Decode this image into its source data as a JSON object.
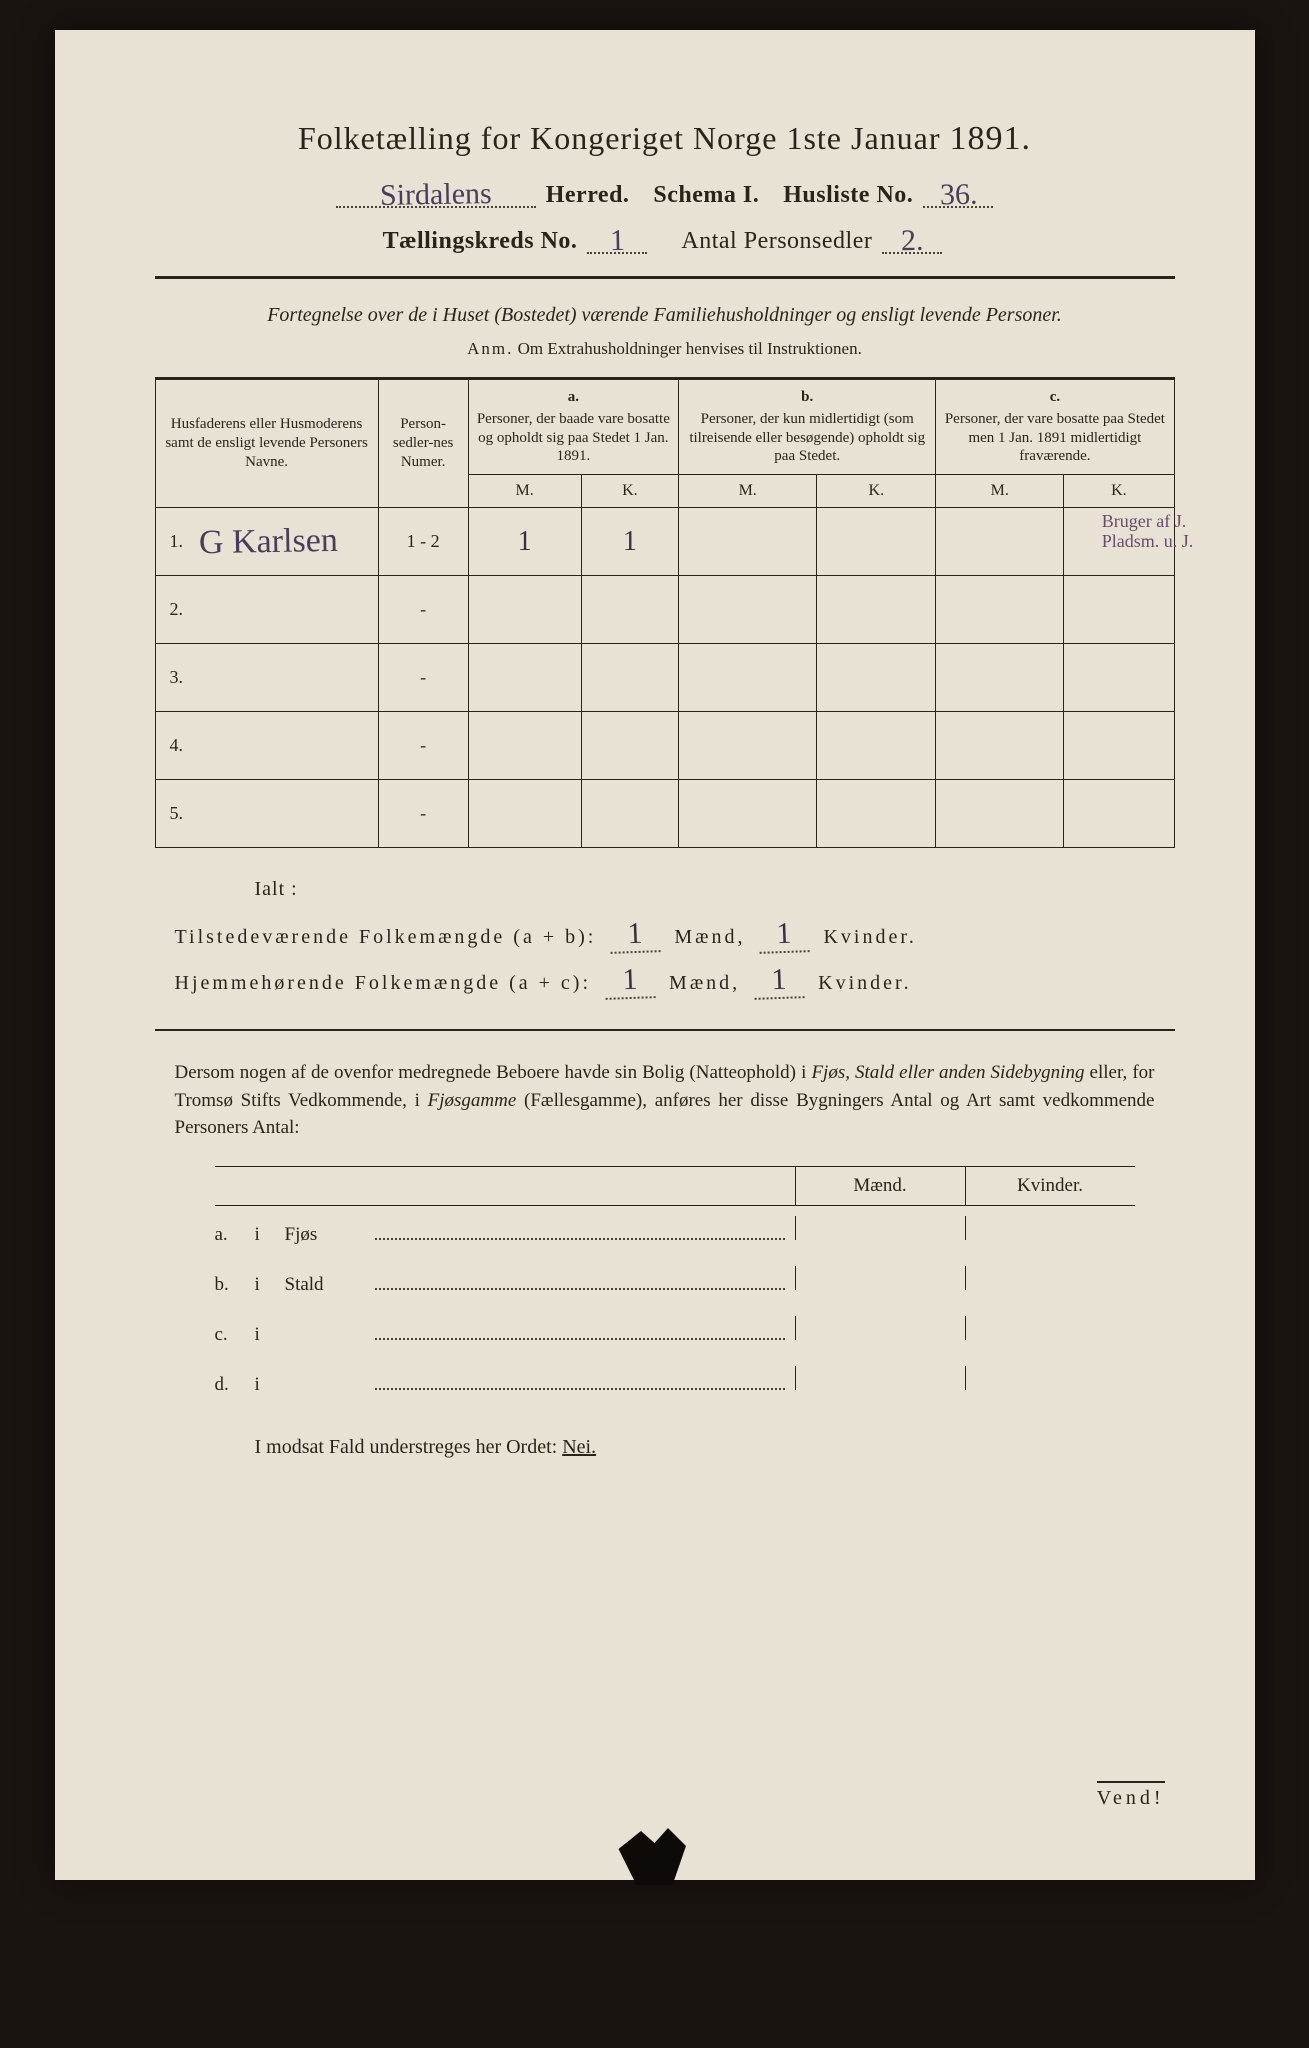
{
  "page": {
    "bg": "#e8e2d4",
    "ink": "#2a2418",
    "handwriting_color": "#4a3c5a"
  },
  "title": {
    "text_a": "Folketælling for Kongeriget Norge 1ste Januar",
    "year": "1891."
  },
  "header": {
    "herred_hw": "Sirdalens",
    "herred_label": "Herred.",
    "schema_label": "Schema I.",
    "husliste_label": "Husliste No.",
    "husliste_hw": "36.",
    "kreds_label": "Tællingskreds No.",
    "kreds_hw": "1",
    "antal_label": "Antal Personsedler",
    "antal_hw": "2."
  },
  "subtitle": "Fortegnelse over de i Huset (Bostedet) værende Familiehusholdninger og ensligt levende Personer.",
  "anm": {
    "lead": "Anm.",
    "text": "Om Extrahusholdninger henvises til Instruktionen."
  },
  "table": {
    "col_name": "Husfaderens eller Husmoderens samt de ensligt levende Personers Navne.",
    "col_num": "Person-sedler-nes Numer.",
    "col_a_tag": "a.",
    "col_a": "Personer, der baade vare bosatte og opholdt sig paa Stedet 1 Jan. 1891.",
    "col_b_tag": "b.",
    "col_b": "Personer, der kun midlertidigt (som tilreisende eller besøgende) opholdt sig paa Stedet.",
    "col_c_tag": "c.",
    "col_c": "Personer, der vare bosatte paa Stedet men 1 Jan. 1891 midlertidigt fraværende.",
    "M": "M.",
    "K": "K.",
    "rows": [
      {
        "n": "1.",
        "name_hw": "G Karlsen",
        "num": "1 - 2",
        "aM": "1",
        "aK": "1",
        "bM": "",
        "bK": "",
        "cM": "",
        "cK": "",
        "note": "Bruger af J.\nPladsm. u. J."
      },
      {
        "n": "2.",
        "name_hw": "",
        "num": "-",
        "aM": "",
        "aK": "",
        "bM": "",
        "bK": "",
        "cM": "",
        "cK": "",
        "note": ""
      },
      {
        "n": "3.",
        "name_hw": "",
        "num": "-",
        "aM": "",
        "aK": "",
        "bM": "",
        "bK": "",
        "cM": "",
        "cK": "",
        "note": ""
      },
      {
        "n": "4.",
        "name_hw": "",
        "num": "-",
        "aM": "",
        "aK": "",
        "bM": "",
        "bK": "",
        "cM": "",
        "cK": "",
        "note": ""
      },
      {
        "n": "5.",
        "name_hw": "",
        "num": "-",
        "aM": "",
        "aK": "",
        "bM": "",
        "bK": "",
        "cM": "",
        "cK": "",
        "note": ""
      }
    ]
  },
  "totals": {
    "ialt": "Ialt :",
    "line1_label": "Tilstedeværende Folkemængde (a + b):",
    "line2_label": "Hjemmehørende Folkemængde (a + c):",
    "maend": "Mænd,",
    "kvinder": "Kvinder.",
    "l1_m": "1",
    "l1_k": "1",
    "l2_m": "1",
    "l2_k": "1"
  },
  "para": "Dersom nogen af de ovenfor medregnede Beboere havde sin Bolig (Natteophold) i Fjøs, Stald eller anden Sidebygning eller, for Tromsø Stifts Vedkommende, i Fjøsgamme (Fællesgamme), anføres her disse Bygningers Antal og Art samt vedkommende Personers Antal:",
  "outbuild": {
    "head_m": "Mænd.",
    "head_k": "Kvinder.",
    "rows": [
      {
        "tag": "a.",
        "i": "i",
        "label": "Fjøs"
      },
      {
        "tag": "b.",
        "i": "i",
        "label": "Stald"
      },
      {
        "tag": "c.",
        "i": "i",
        "label": ""
      },
      {
        "tag": "d.",
        "i": "i",
        "label": ""
      }
    ]
  },
  "nei": {
    "text_a": "I modsat Fald understreges her Ordet:",
    "nei": "Nei."
  },
  "vend": "Vend!"
}
